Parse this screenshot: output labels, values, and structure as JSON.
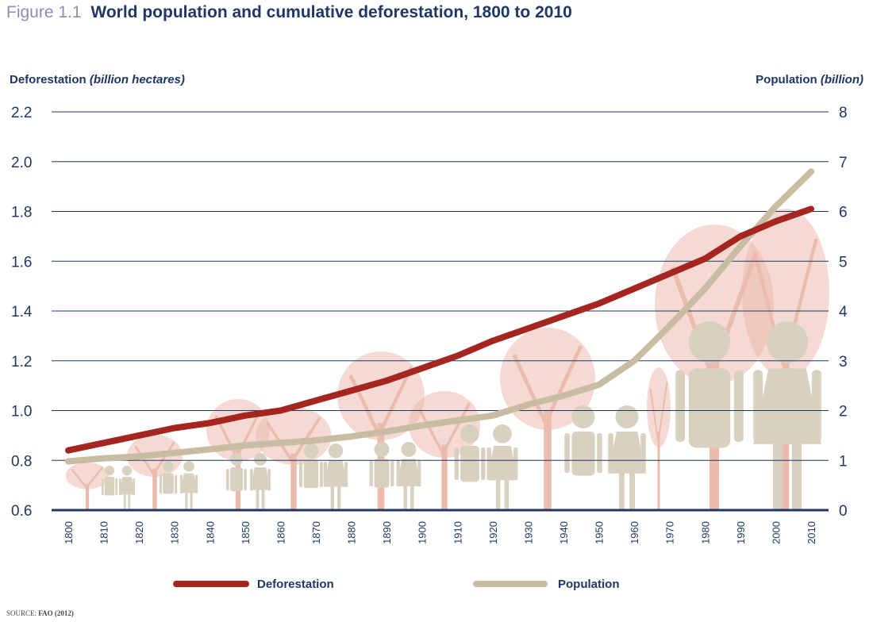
{
  "figure": {
    "label": "Figure 1.1",
    "title": "World population and cumulative deforestation, 1800 to 2010",
    "source_label": "SOURCE:",
    "source_text": "FAO (2012)"
  },
  "axes": {
    "left_title": "Deforestation",
    "left_unit": "(billion hectares)",
    "right_title": "Population",
    "right_unit": "(billion)"
  },
  "colors": {
    "deforestation": "#a52520",
    "population": "#c8bca2",
    "grid": "#1f3765",
    "text": "#1f3765",
    "tree": "#ebbcad",
    "figure_icon": "#d9d1bf"
  },
  "chart_data": {
    "type": "line",
    "x_categories": [
      "1800",
      "1810",
      "1820",
      "1830",
      "1840",
      "1850",
      "1860",
      "1870",
      "1880",
      "1890",
      "1900",
      "1910",
      "1920",
      "1930",
      "1940",
      "1950",
      "1960",
      "1970",
      "1980",
      "1990",
      "2000",
      "2010"
    ],
    "y_left": {
      "label": "Deforestation (billion hectares)",
      "min": 0.6,
      "max": 2.2,
      "ticks": [
        "0.6",
        "0.8",
        "1.0",
        "1.2",
        "1.4",
        "1.6",
        "1.8",
        "2.0",
        "2.2"
      ]
    },
    "y_right": {
      "label": "Population (billion)",
      "min": 0,
      "max": 8,
      "ticks": [
        "0",
        "1",
        "2",
        "3",
        "4",
        "5",
        "6",
        "7",
        "8"
      ]
    },
    "grid": true,
    "legend_position": "bottom",
    "series": [
      {
        "name": "Deforestation",
        "axis": "left",
        "x": [
          1800,
          1810,
          1820,
          1830,
          1840,
          1850,
          1860,
          1870,
          1880,
          1890,
          1900,
          1910,
          1920,
          1930,
          1940,
          1950,
          1960,
          1970,
          1980,
          1990,
          2000,
          2010
        ],
        "y": [
          0.84,
          0.87,
          0.9,
          0.93,
          0.95,
          0.98,
          1.0,
          1.04,
          1.08,
          1.12,
          1.17,
          1.22,
          1.28,
          1.33,
          1.38,
          1.43,
          1.49,
          1.55,
          1.61,
          1.7,
          1.76,
          1.81
        ]
      },
      {
        "name": "Population",
        "axis": "right",
        "x": [
          1800,
          1810,
          1820,
          1830,
          1840,
          1850,
          1860,
          1870,
          1880,
          1890,
          1900,
          1910,
          1920,
          1930,
          1940,
          1950,
          1960,
          1970,
          1980,
          1990,
          2000,
          2010
        ],
        "y": [
          0.98,
          1.04,
          1.08,
          1.15,
          1.22,
          1.3,
          1.35,
          1.4,
          1.48,
          1.58,
          1.7,
          1.8,
          1.9,
          2.12,
          2.3,
          2.52,
          3.0,
          3.7,
          4.45,
          5.3,
          6.1,
          6.8
        ]
      }
    ]
  }
}
